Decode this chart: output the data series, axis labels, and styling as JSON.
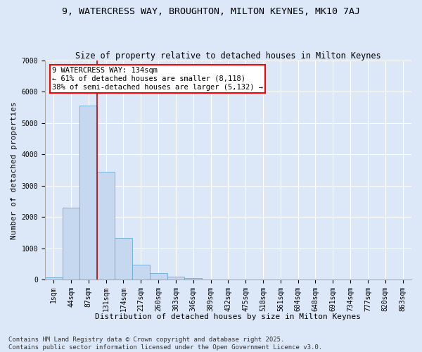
{
  "title_line1": "9, WATERCRESS WAY, BROUGHTON, MILTON KEYNES, MK10 7AJ",
  "title_line2": "Size of property relative to detached houses in Milton Keynes",
  "xlabel": "Distribution of detached houses by size in Milton Keynes",
  "ylabel": "Number of detached properties",
  "categories": [
    "1sqm",
    "44sqm",
    "87sqm",
    "131sqm",
    "174sqm",
    "217sqm",
    "260sqm",
    "303sqm",
    "346sqm",
    "389sqm",
    "432sqm",
    "475sqm",
    "518sqm",
    "561sqm",
    "604sqm",
    "648sqm",
    "691sqm",
    "734sqm",
    "777sqm",
    "820sqm",
    "863sqm"
  ],
  "bar_values": [
    80,
    2300,
    5550,
    3450,
    1330,
    480,
    200,
    100,
    50,
    0,
    0,
    0,
    0,
    0,
    0,
    0,
    0,
    0,
    0,
    0,
    0
  ],
  "bar_color": "#c5d8f0",
  "bar_edgecolor": "#6aaad4",
  "vline_color": "#cc0000",
  "vline_x": 2.5,
  "annotation_line1": "9 WATERCRESS WAY: 134sqm",
  "annotation_line2": "← 61% of detached houses are smaller (8,118)",
  "annotation_line3": "38% of semi-detached houses are larger (5,132) →",
  "ylim": [
    0,
    7000
  ],
  "yticks": [
    0,
    1000,
    2000,
    3000,
    4000,
    5000,
    6000,
    7000
  ],
  "background_color": "#dce8f8",
  "plot_bg_color": "#dce8f8",
  "grid_color": "#ffffff",
  "footer_line1": "Contains HM Land Registry data © Crown copyright and database right 2025.",
  "footer_line2": "Contains public sector information licensed under the Open Government Licence v3.0.",
  "title_fontsize": 9.5,
  "subtitle_fontsize": 8.5,
  "axis_label_fontsize": 8,
  "tick_fontsize": 7,
  "annotation_fontsize": 7.5,
  "footer_fontsize": 6.5
}
